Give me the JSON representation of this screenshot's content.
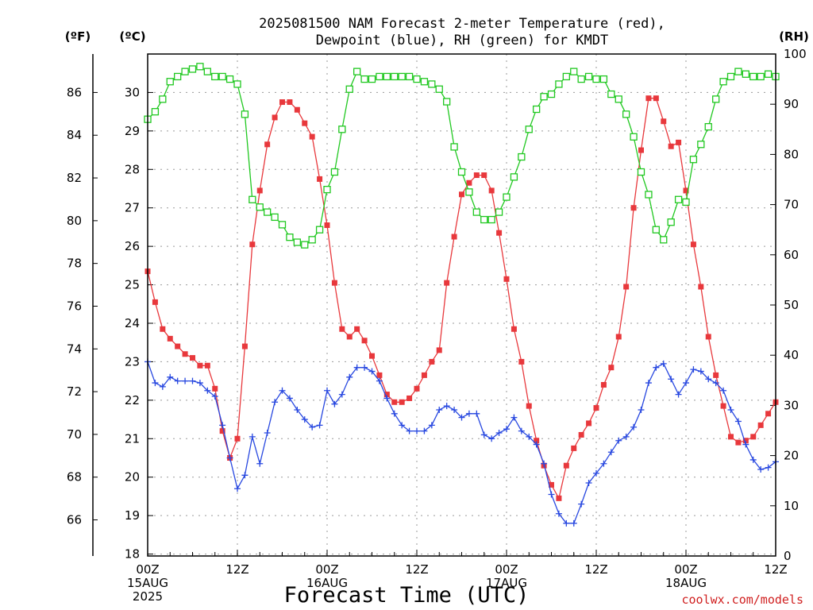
{
  "title_line1": "2025081500 NAM Forecast 2-meter Temperature (red),",
  "title_line2": "Dewpoint (blue), RH (green) for KMDT",
  "left_unit_f": "(ºF)",
  "left_unit_c": "(ºC)",
  "right_unit": "(RH)",
  "x_title": "Forecast Time (UTC)",
  "credit": "coolwx.com/models",
  "colors": {
    "temp": "#e8383c",
    "dewpoint": "#2848e0",
    "rh": "#20c820",
    "grid": "#9a9a9a"
  },
  "chart_data": {
    "type": "line",
    "title": "2025081500 NAM Forecast 2-meter Temperature (red), Dewpoint (blue), RH (green) for KMDT",
    "xlabel": "Forecast Time (UTC)",
    "x_unit": "forecast hour (UTC), starting 00Z 15AUG 2025",
    "x_ticks": [
      {
        "hour": 0,
        "lines": [
          "00Z",
          "15AUG",
          "2025"
        ]
      },
      {
        "hour": 12,
        "lines": [
          "12Z"
        ]
      },
      {
        "hour": 24,
        "lines": [
          "00Z",
          "16AUG"
        ]
      },
      {
        "hour": 36,
        "lines": [
          "12Z"
        ]
      },
      {
        "hour": 48,
        "lines": [
          "00Z",
          "17AUG"
        ]
      },
      {
        "hour": 60,
        "lines": [
          "12Z"
        ]
      },
      {
        "hour": 72,
        "lines": [
          "00Z",
          "18AUG"
        ]
      },
      {
        "hour": 84,
        "lines": [
          "12Z"
        ]
      }
    ],
    "xlim": [
      0,
      84
    ],
    "y_celsius": {
      "ticks": [
        18,
        19,
        20,
        21,
        22,
        23,
        24,
        25,
        26,
        27,
        28,
        29,
        30
      ],
      "ylim": [
        17.95,
        31.0
      ]
    },
    "y_fahrenheit": {
      "ticks": [
        66,
        68,
        70,
        72,
        74,
        76,
        78,
        80,
        82,
        84,
        86
      ]
    },
    "y_rh": {
      "ticks": [
        0,
        10,
        20,
        30,
        40,
        50,
        60,
        70,
        80,
        90,
        100
      ],
      "ylim": [
        0,
        100
      ]
    },
    "grid": true,
    "series": [
      {
        "name": "2-meter Temperature",
        "axis": "celsius",
        "color": "red",
        "marker": "filled-square",
        "x": [
          0,
          1,
          2,
          3,
          4,
          5,
          6,
          7,
          8,
          9,
          10,
          11,
          12,
          13,
          14,
          15,
          16,
          17,
          18,
          19,
          20,
          21,
          22,
          23,
          24,
          25,
          26,
          27,
          28,
          29,
          30,
          31,
          32,
          33,
          34,
          35,
          36,
          37,
          38,
          39,
          40,
          41,
          42,
          43,
          44,
          45,
          46,
          47,
          48,
          49,
          50,
          51,
          52,
          53,
          54,
          55,
          56,
          57,
          58,
          59,
          60,
          61,
          62,
          63,
          64,
          65,
          66,
          67,
          68,
          69,
          70,
          71,
          72,
          73,
          74,
          75,
          76,
          77,
          78,
          79,
          80,
          81,
          82,
          83,
          84
        ],
        "y": [
          25.35,
          24.55,
          23.85,
          23.6,
          23.4,
          23.2,
          23.1,
          22.9,
          22.9,
          22.3,
          21.2,
          20.5,
          21.0,
          23.4,
          26.05,
          27.45,
          28.65,
          29.35,
          29.75,
          29.75,
          29.55,
          29.2,
          28.85,
          27.75,
          26.55,
          25.05,
          23.85,
          23.65,
          23.85,
          23.55,
          23.15,
          22.65,
          22.15,
          21.95,
          21.95,
          22.05,
          22.3,
          22.65,
          23.0,
          23.3,
          25.05,
          26.25,
          27.35,
          27.65,
          27.85,
          27.85,
          27.45,
          26.35,
          25.15,
          23.85,
          23.0,
          21.85,
          20.95,
          20.3,
          19.8,
          19.45,
          20.3,
          20.75,
          21.1,
          21.4,
          21.8,
          22.4,
          22.85,
          23.65,
          24.95,
          27.0,
          28.5,
          29.85,
          29.85,
          29.25,
          28.6,
          28.7,
          27.45,
          26.05,
          24.95,
          23.65,
          22.65,
          21.85,
          21.05,
          20.9,
          20.95,
          21.05,
          21.35,
          21.65,
          21.95
        ]
      },
      {
        "name": "Dewpoint",
        "axis": "celsius",
        "color": "blue",
        "marker": "plus",
        "x": [
          0,
          1,
          2,
          3,
          4,
          5,
          6,
          7,
          8,
          9,
          10,
          11,
          12,
          13,
          14,
          15,
          16,
          17,
          18,
          19,
          20,
          21,
          22,
          23,
          24,
          25,
          26,
          27,
          28,
          29,
          30,
          31,
          32,
          33,
          34,
          35,
          36,
          37,
          38,
          39,
          40,
          41,
          42,
          43,
          44,
          45,
          46,
          47,
          48,
          49,
          50,
          51,
          52,
          53,
          54,
          55,
          56,
          57,
          58,
          59,
          60,
          61,
          62,
          63,
          64,
          65,
          66,
          67,
          68,
          69,
          70,
          71,
          72,
          73,
          74,
          75,
          76,
          77,
          78,
          79,
          80,
          81,
          82,
          83,
          84
        ],
        "y": [
          23.0,
          22.45,
          22.35,
          22.6,
          22.5,
          22.5,
          22.5,
          22.45,
          22.25,
          22.1,
          21.35,
          20.5,
          19.7,
          20.05,
          21.05,
          20.35,
          21.15,
          21.95,
          22.25,
          22.05,
          21.75,
          21.5,
          21.3,
          21.35,
          22.25,
          21.9,
          22.15,
          22.6,
          22.85,
          22.85,
          22.75,
          22.5,
          22.05,
          21.65,
          21.35,
          21.2,
          21.2,
          21.2,
          21.35,
          21.75,
          21.85,
          21.75,
          21.55,
          21.65,
          21.65,
          21.1,
          21.0,
          21.15,
          21.25,
          21.55,
          21.2,
          21.05,
          20.85,
          20.35,
          19.55,
          19.05,
          18.8,
          18.8,
          19.3,
          19.85,
          20.1,
          20.35,
          20.65,
          20.95,
          21.05,
          21.3,
          21.75,
          22.45,
          22.85,
          22.95,
          22.55,
          22.15,
          22.45,
          22.8,
          22.75,
          22.55,
          22.45,
          22.25,
          21.75,
          21.45,
          20.85,
          20.45,
          20.2,
          20.25,
          20.4
        ]
      },
      {
        "name": "RH",
        "axis": "rh",
        "color": "green",
        "marker": "open-square",
        "x": [
          0,
          1,
          2,
          3,
          4,
          5,
          6,
          7,
          8,
          9,
          10,
          11,
          12,
          13,
          14,
          15,
          16,
          17,
          18,
          19,
          20,
          21,
          22,
          23,
          24,
          25,
          26,
          27,
          28,
          29,
          30,
          31,
          32,
          33,
          34,
          35,
          36,
          37,
          38,
          39,
          40,
          41,
          42,
          43,
          44,
          45,
          46,
          47,
          48,
          49,
          50,
          51,
          52,
          53,
          54,
          55,
          56,
          57,
          58,
          59,
          60,
          61,
          62,
          63,
          64,
          65,
          66,
          67,
          68,
          69,
          70,
          71,
          72,
          73,
          74,
          75,
          76,
          77,
          78,
          79,
          80,
          81,
          82,
          83,
          84
        ],
        "y": [
          87,
          88.5,
          91,
          94.5,
          95.5,
          96.5,
          97,
          97.5,
          96.5,
          95.5,
          95.5,
          95,
          94,
          88,
          71,
          69.5,
          68.5,
          67.5,
          66,
          63.5,
          62.5,
          62,
          63,
          65,
          73,
          76.5,
          85,
          93,
          96.5,
          95,
          95,
          95.5,
          95.5,
          95.5,
          95.5,
          95.5,
          95,
          94.5,
          94,
          93,
          90.5,
          81.5,
          76.5,
          72.5,
          68.5,
          67,
          67,
          68.5,
          71.5,
          75.5,
          79.5,
          85,
          89,
          91.5,
          92,
          94,
          95.5,
          96.5,
          95,
          95.5,
          95,
          95,
          92,
          91,
          88,
          83.5,
          76.5,
          72,
          65,
          63,
          66.5,
          71,
          70.5,
          79,
          82,
          85.5,
          91,
          94.5,
          95.5,
          96.5,
          96,
          95.5,
          95.5,
          96,
          95.5
        ]
      }
    ]
  }
}
